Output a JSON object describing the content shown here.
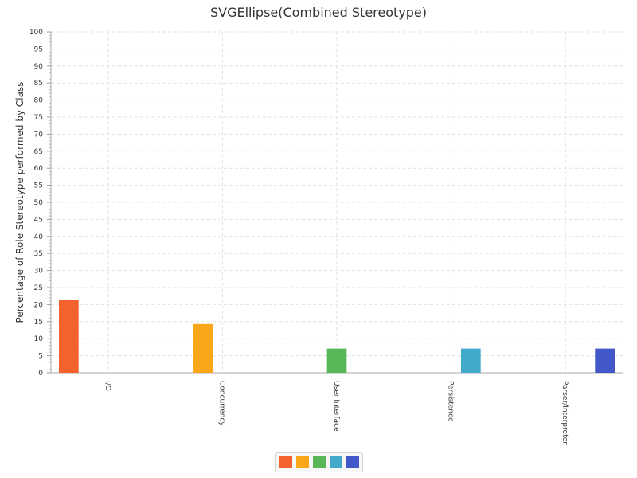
{
  "chart_data": {
    "type": "bar",
    "title": "SVGEllipse(Combined Stereotype)",
    "xlabel": "",
    "ylabel": "Percentage of Role Stereotype performed by Class",
    "ylim": [
      0,
      100
    ],
    "ytick_step": 5,
    "grid": true,
    "categories": [
      "I/O",
      "Concurrency",
      "User Interface",
      "Persistence",
      "Parser/Interpreter"
    ],
    "series": [
      {
        "values": [
          21.4,
          0,
          0,
          0,
          0
        ],
        "color": "#f3622d"
      },
      {
        "values": [
          0,
          14.3,
          0,
          0,
          0
        ],
        "color": "#fba71b"
      },
      {
        "values": [
          0,
          0,
          7.1,
          0,
          0
        ],
        "color": "#57b757"
      },
      {
        "values": [
          0,
          0,
          0,
          7.1,
          0
        ],
        "color": "#41a9c9"
      },
      {
        "values": [
          0,
          0,
          0,
          0,
          7.1
        ],
        "color": "#4258c9"
      }
    ],
    "legend_position": "bottom"
  }
}
